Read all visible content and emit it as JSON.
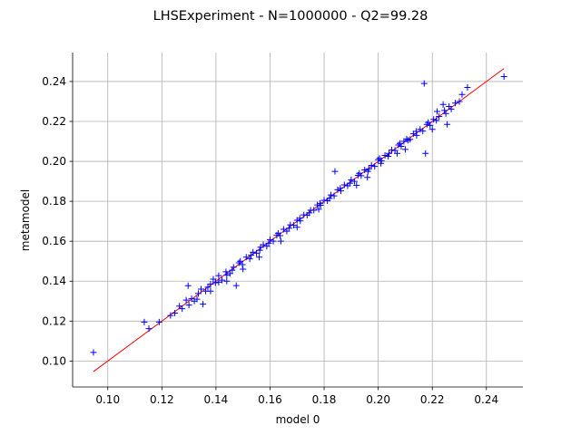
{
  "chart_data": {
    "type": "scatter",
    "title": "LHSExperiment - N=1000000 - Q2=99.28",
    "xlabel": "model 0",
    "ylabel": "metamodel",
    "xlim": [
      0.087,
      0.2535
    ],
    "ylim": [
      0.087,
      0.2545
    ],
    "xticks": [
      0.1,
      0.12,
      0.14,
      0.16,
      0.18,
      0.2,
      0.22,
      0.24
    ],
    "yticks": [
      0.1,
      0.12,
      0.14,
      0.16,
      0.18,
      0.2,
      0.22,
      0.24
    ],
    "grid": true,
    "series": [
      {
        "kind": "scatter",
        "marker": "+",
        "color": "#0000ff",
        "points": [
          [
            0.0947,
            0.1043
          ],
          [
            0.1135,
            0.1195
          ],
          [
            0.1152,
            0.1162
          ],
          [
            0.119,
            0.1195
          ],
          [
            0.1232,
            0.1228
          ],
          [
            0.1248,
            0.124
          ],
          [
            0.1265,
            0.1275
          ],
          [
            0.1275,
            0.1262
          ],
          [
            0.129,
            0.1305
          ],
          [
            0.1297,
            0.1377
          ],
          [
            0.131,
            0.1312
          ],
          [
            0.132,
            0.13
          ],
          [
            0.1335,
            0.1338
          ],
          [
            0.1352,
            0.1285
          ],
          [
            0.1362,
            0.135
          ],
          [
            0.138,
            0.1385
          ],
          [
            0.1398,
            0.1392
          ],
          [
            0.141,
            0.1428
          ],
          [
            0.1422,
            0.1405
          ],
          [
            0.1437,
            0.1447
          ],
          [
            0.1452,
            0.1438
          ],
          [
            0.1465,
            0.147
          ],
          [
            0.1475,
            0.1378
          ],
          [
            0.1485,
            0.1492
          ],
          [
            0.1498,
            0.1483
          ],
          [
            0.1512,
            0.152
          ],
          [
            0.1525,
            0.1512
          ],
          [
            0.1537,
            0.1545
          ],
          [
            0.155,
            0.154
          ],
          [
            0.1562,
            0.1555
          ],
          [
            0.1575,
            0.1582
          ],
          [
            0.1588,
            0.1575
          ],
          [
            0.16,
            0.1608
          ],
          [
            0.1612,
            0.16
          ],
          [
            0.1625,
            0.163
          ],
          [
            0.1637,
            0.1628
          ],
          [
            0.165,
            0.166
          ],
          [
            0.1662,
            0.165
          ],
          [
            0.1675,
            0.1682
          ],
          [
            0.1687,
            0.168
          ],
          [
            0.17,
            0.1705
          ],
          [
            0.1712,
            0.1702
          ],
          [
            0.1725,
            0.1732
          ],
          [
            0.1737,
            0.173
          ],
          [
            0.175,
            0.1755
          ],
          [
            0.1762,
            0.1755
          ],
          [
            0.1775,
            0.1782
          ],
          [
            0.1787,
            0.178
          ],
          [
            0.18,
            0.1805
          ],
          [
            0.1812,
            0.1803
          ],
          [
            0.1825,
            0.1832
          ],
          [
            0.1837,
            0.1827
          ],
          [
            0.185,
            0.1858
          ],
          [
            0.1862,
            0.1852
          ],
          [
            0.1875,
            0.1882
          ],
          [
            0.1887,
            0.1878
          ],
          [
            0.19,
            0.1908
          ],
          [
            0.1912,
            0.19
          ],
          [
            0.1925,
            0.193
          ],
          [
            0.1937,
            0.1928
          ],
          [
            0.195,
            0.1957
          ],
          [
            0.1962,
            0.195
          ],
          [
            0.1975,
            0.198
          ],
          [
            0.1987,
            0.1975
          ],
          [
            0.2,
            0.2008
          ],
          [
            0.2012,
            0.2003
          ],
          [
            0.2025,
            0.203
          ],
          [
            0.2037,
            0.2025
          ],
          [
            0.205,
            0.2057
          ],
          [
            0.2062,
            0.2055
          ],
          [
            0.2075,
            0.2082
          ],
          [
            0.2085,
            0.2075
          ],
          [
            0.2095,
            0.21
          ],
          [
            0.2105,
            0.2112
          ],
          [
            0.2118,
            0.211
          ],
          [
            0.213,
            0.2138
          ],
          [
            0.2142,
            0.213
          ],
          [
            0.2155,
            0.216
          ],
          [
            0.2165,
            0.2152
          ],
          [
            0.217,
            0.239
          ],
          [
            0.2175,
            0.204
          ],
          [
            0.218,
            0.2185
          ],
          [
            0.2192,
            0.218
          ],
          [
            0.2205,
            0.221
          ],
          [
            0.2218,
            0.225
          ],
          [
            0.2225,
            0.2225
          ],
          [
            0.224,
            0.2285
          ],
          [
            0.225,
            0.224
          ],
          [
            0.2255,
            0.2185
          ],
          [
            0.2262,
            0.2275
          ],
          [
            0.227,
            0.2262
          ],
          [
            0.2285,
            0.2292
          ],
          [
            0.23,
            0.23
          ],
          [
            0.231,
            0.2335
          ],
          [
            0.233,
            0.237
          ],
          [
            0.2465,
            0.2425
          ],
          [
            0.13,
            0.128
          ],
          [
            0.133,
            0.131
          ],
          [
            0.1345,
            0.136
          ],
          [
            0.137,
            0.137
          ],
          [
            0.139,
            0.141
          ],
          [
            0.141,
            0.1395
          ],
          [
            0.144,
            0.143
          ],
          [
            0.146,
            0.1455
          ],
          [
            0.149,
            0.15
          ],
          [
            0.153,
            0.153
          ],
          [
            0.1565,
            0.157
          ],
          [
            0.1595,
            0.159
          ],
          [
            0.163,
            0.164
          ],
          [
            0.167,
            0.1665
          ],
          [
            0.171,
            0.1715
          ],
          [
            0.1745,
            0.1742
          ],
          [
            0.1785,
            0.179
          ],
          [
            0.182,
            0.1815
          ],
          [
            0.186,
            0.1865
          ],
          [
            0.1895,
            0.189
          ],
          [
            0.193,
            0.194
          ],
          [
            0.1965,
            0.1962
          ],
          [
            0.2005,
            0.2015
          ],
          [
            0.204,
            0.204
          ],
          [
            0.208,
            0.209
          ],
          [
            0.211,
            0.2105
          ],
          [
            0.214,
            0.215
          ],
          [
            0.2185,
            0.2195
          ],
          [
            0.2215,
            0.2205
          ],
          [
            0.2245,
            0.2255
          ],
          [
            0.184,
            0.195
          ],
          [
            0.196,
            0.192
          ],
          [
            0.201,
            0.199
          ],
          [
            0.207,
            0.204
          ],
          [
            0.156,
            0.152
          ],
          [
            0.15,
            0.146
          ],
          [
            0.17,
            0.167
          ],
          [
            0.178,
            0.176
          ],
          [
            0.192,
            0.188
          ],
          [
            0.21,
            0.206
          ],
          [
            0.22,
            0.216
          ],
          [
            0.164,
            0.16
          ],
          [
            0.144,
            0.14
          ],
          [
            0.138,
            0.135
          ]
        ]
      },
      {
        "kind": "line",
        "color": "#ff0000",
        "points": [
          [
            0.0947,
            0.0947
          ],
          [
            0.2465,
            0.2465
          ]
        ]
      }
    ]
  }
}
